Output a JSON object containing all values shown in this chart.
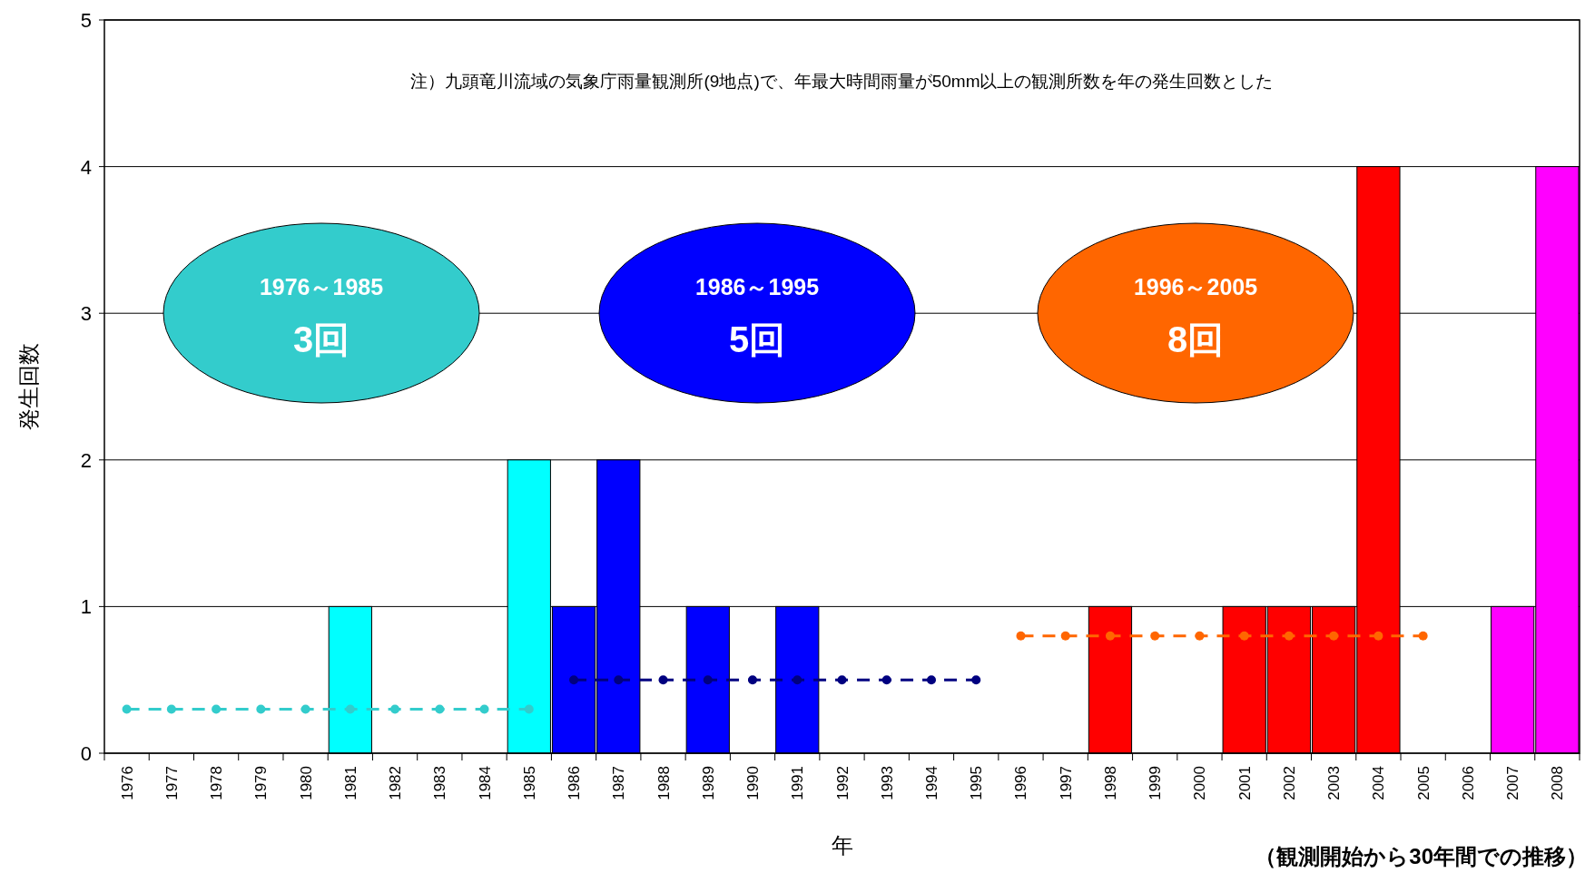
{
  "chart_data": {
    "type": "bar",
    "xlabel": "年",
    "ylabel": "発生回数",
    "categories": [
      "1976",
      "1977",
      "1978",
      "1979",
      "1980",
      "1981",
      "1982",
      "1983",
      "1984",
      "1985",
      "1986",
      "1987",
      "1988",
      "1989",
      "1990",
      "1991",
      "1992",
      "1993",
      "1994",
      "1995",
      "1996",
      "1997",
      "1998",
      "1999",
      "2000",
      "2001",
      "2002",
      "2003",
      "2004",
      "2005",
      "2006",
      "2007",
      "2008"
    ],
    "ylim": [
      0,
      5
    ],
    "yticks": [
      0,
      1,
      2,
      3,
      4,
      5
    ],
    "grid": "y",
    "series": [
      {
        "values": [
          0,
          0,
          0,
          0,
          0,
          1,
          0,
          0,
          0,
          2,
          1,
          2,
          0,
          1,
          0,
          1,
          0,
          0,
          0,
          0,
          0,
          0,
          1,
          0,
          0,
          1,
          1,
          1,
          4,
          0,
          0,
          1,
          4
        ],
        "colors": [
          "#00ffff",
          "#00ffff",
          "#00ffff",
          "#00ffff",
          "#00ffff",
          "#00ffff",
          "#00ffff",
          "#00ffff",
          "#00ffff",
          "#00ffff",
          "#0000ff",
          "#0000ff",
          "#0000ff",
          "#0000ff",
          "#0000ff",
          "#0000ff",
          "#0000ff",
          "#0000ff",
          "#0000ff",
          "#0000ff",
          "#ff0000",
          "#ff0000",
          "#ff0000",
          "#ff0000",
          "#ff0000",
          "#ff0000",
          "#ff0000",
          "#ff0000",
          "#ff0000",
          "#ff0000",
          "#ff00ff",
          "#ff00ff",
          "#ff00ff"
        ]
      },
      {
        "type": "line",
        "values": [
          0.3,
          0.3,
          0.3,
          0.3,
          0.3,
          0.3,
          0.3,
          0.3,
          0.3,
          0.3,
          null,
          null,
          null,
          null,
          null,
          null,
          null,
          null,
          null,
          null,
          null,
          null,
          null,
          null,
          null,
          null,
          null,
          null,
          null,
          null,
          null,
          null,
          null
        ],
        "color": "#33cccc",
        "line_style": "dashed",
        "marker": "circle"
      },
      {
        "type": "line",
        "values": [
          null,
          null,
          null,
          null,
          null,
          null,
          null,
          null,
          null,
          null,
          0.5,
          0.5,
          0.5,
          0.5,
          0.5,
          0.5,
          0.5,
          0.5,
          0.5,
          0.5,
          null,
          null,
          null,
          null,
          null,
          null,
          null,
          null,
          null,
          null,
          null,
          null,
          null
        ],
        "color": "#000080",
        "line_style": "dashed",
        "marker": "circle"
      },
      {
        "type": "line",
        "values": [
          null,
          null,
          null,
          null,
          null,
          null,
          null,
          null,
          null,
          null,
          null,
          null,
          null,
          null,
          null,
          null,
          null,
          null,
          null,
          null,
          0.8,
          0.8,
          0.8,
          0.8,
          0.8,
          0.8,
          0.8,
          0.8,
          0.8,
          0.8,
          null,
          null,
          null
        ],
        "color": "#ff6600",
        "line_style": "dashed",
        "marker": "circle"
      }
    ],
    "annotations": [
      "注）九頭竜川流域の気象庁雨量観測所(9地点)で、年最大時間雨量が50mm以上の観測所数を年の発生回数とした",
      "1976～1985",
      "3回",
      "1986～1995",
      "5回",
      "1996～2005",
      "8回",
      "（観測開始から30年間での推移）"
    ]
  }
}
